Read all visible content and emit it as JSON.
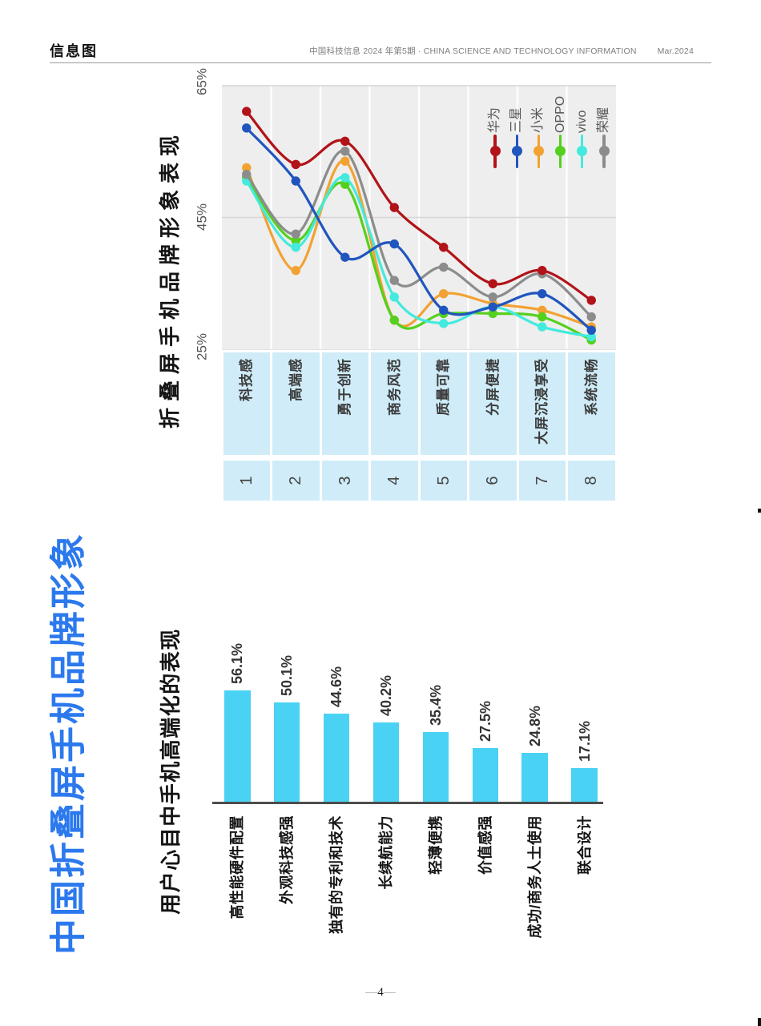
{
  "header": {
    "section_label": "信息图",
    "journal_line": "中国科技信息 2024 年第5期 · CHINA SCIENCE AND TECHNOLOGY INFORMATION",
    "date": "Mar.2024"
  },
  "main_title": {
    "text": "中国折叠屏手机品牌形象",
    "color": "#2c79ee"
  },
  "footer": {
    "left_dash": "—",
    "page_number": "4",
    "right_dash": "—"
  },
  "chart_data": [
    {
      "type": "line",
      "title": "折叠屏手机品牌形象表现",
      "unit": "%",
      "ylim": [
        25,
        65
      ],
      "yticks": [
        "65%",
        "45%",
        "25%"
      ],
      "grid": {
        "background": "#eeeeee",
        "vertical_gridlines": "white",
        "horizontal_line_at": 45
      },
      "legend_position": "top-right-inside",
      "categories": [
        "科技感",
        "高端感",
        "勇于创新",
        "商务风范",
        "质量可靠",
        "分屏便捷",
        "大屏沉浸享受",
        "系统流畅"
      ],
      "category_numbers": [
        "1",
        "2",
        "3",
        "4",
        "5",
        "6",
        "7",
        "8"
      ],
      "header_cell_color": "#cfecf8",
      "series": [
        {
          "name": "华为",
          "color": "#b11318",
          "values": [
            61,
            53,
            56.5,
            46.5,
            40.5,
            35,
            37,
            32.5
          ]
        },
        {
          "name": "三星",
          "color": "#2155be",
          "values": [
            58.5,
            50.5,
            39,
            41,
            31,
            31.5,
            33.5,
            28
          ]
        },
        {
          "name": "小米",
          "color": "#f2a232",
          "values": [
            52.5,
            37,
            53.5,
            29.5,
            33.5,
            32,
            31,
            28.5
          ]
        },
        {
          "name": "OPPO",
          "color": "#55d01e",
          "values": [
            51,
            41.5,
            50,
            29.5,
            30.5,
            30.5,
            30,
            26.5
          ]
        },
        {
          "name": "vivo",
          "color": "#43eadd",
          "values": [
            50.5,
            40.5,
            51,
            33,
            29,
            31.5,
            28.5,
            27
          ]
        },
        {
          "name": "荣耀",
          "color": "#8c8c8c",
          "values": [
            51.5,
            42.5,
            55,
            35.5,
            37.5,
            33,
            36.5,
            30
          ]
        }
      ]
    },
    {
      "type": "bar",
      "title": "用户心目中手机高端化的表现",
      "unit": "%",
      "ylim": [
        0,
        60
      ],
      "bar_color": "#49d2f3",
      "categories": [
        "高性能硬件配置",
        "外观科技感强",
        "独有的专利和技术",
        "长续航能力",
        "轻薄便携",
        "价值感强",
        "成功/商务人士使用",
        "联合设计"
      ],
      "values": [
        56.1,
        50.1,
        44.6,
        40.2,
        35.4,
        27.5,
        24.8,
        17.1
      ],
      "labels": [
        "56.1%",
        "50.1%",
        "44.6%",
        "40.2%",
        "35.4%",
        "27.5%",
        "24.8%",
        "17.1%"
      ]
    }
  ]
}
